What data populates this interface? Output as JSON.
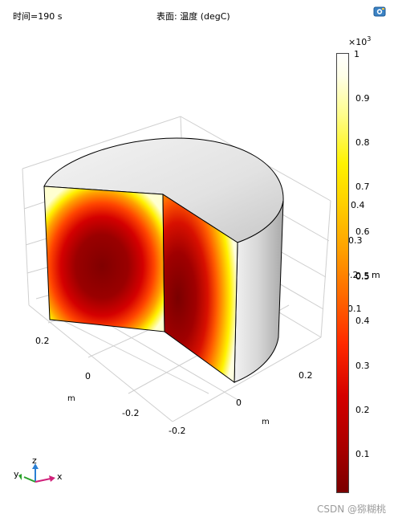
{
  "header": {
    "time_label": "时间=190 s",
    "title": "表面: 温度 (degC)"
  },
  "colorbar": {
    "exponent_prefix": "×10",
    "exponent_power": "3",
    "ticks": [
      "1",
      "0.9",
      "0.8",
      "0.7",
      "0.6",
      "0.5",
      "0.4",
      "0.3",
      "0.2",
      "0.1"
    ],
    "stale_labels": [
      "0.4",
      "0.3",
      "0.2",
      "0.5",
      "m",
      "0.1"
    ]
  },
  "axes": {
    "x_ticks": [
      "0.2",
      "0",
      "-0.2"
    ],
    "y_ticks": [
      "0.2",
      "0",
      "-0.2"
    ],
    "x_unit": "m",
    "y_unit": "m"
  },
  "orientation_triad": {
    "z": "z",
    "y": "y",
    "x": "x"
  },
  "watermark": "CSDN @猕糊桃",
  "icons": {
    "export": "image-export-icon"
  }
}
